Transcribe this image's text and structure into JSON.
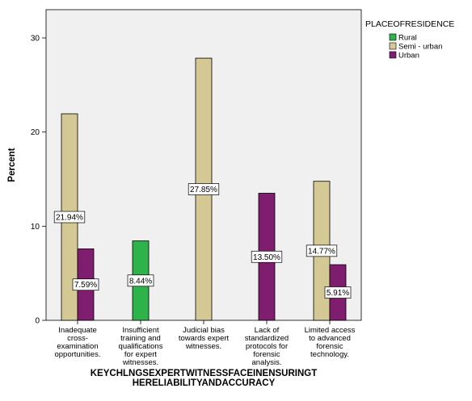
{
  "chart_data": {
    "type": "bar",
    "xlabel": "KEYCHLNGSEXPERTWITNESSFACEINENSURINGTHERELIABILITYANDACCURACY",
    "ylabel": "Percent",
    "ylim": [
      0,
      33
    ],
    "yticks": [
      0,
      10,
      20,
      30
    ],
    "grid": false,
    "legend": {
      "title": "PLACEOFRESIDENCE",
      "position": "top-right"
    },
    "categories": [
      "Inadequate cross-examination opportunities.",
      "Insufficient training and qualifications for expert witnesses.",
      "Judicial bias towards expert witnesses.",
      "Lack of standardized protocols for forensic analysis.",
      "Limited access to advanced forensic technology."
    ],
    "category_lines": [
      [
        "Inadequate",
        "cross-",
        "examination",
        "opportunities."
      ],
      [
        "Insufficient",
        "training and",
        "qualifications",
        "for expert",
        "witnesses."
      ],
      [
        "Judicial bias",
        "towards expert",
        "witnesses."
      ],
      [
        "Lack of",
        "standardized",
        "protocols for",
        "forensic",
        "analysis."
      ],
      [
        "Limited access",
        "to advanced",
        "forensic",
        "technology."
      ]
    ],
    "series": [
      {
        "name": "Rural",
        "color": "#2db34a",
        "values": [
          null,
          8.44,
          null,
          null,
          null
        ],
        "labels": [
          null,
          "8.44%",
          null,
          null,
          null
        ]
      },
      {
        "name": "Semi - urban",
        "color": "#d4c994",
        "values": [
          21.94,
          null,
          27.85,
          null,
          14.77
        ],
        "labels": [
          "21.94%",
          null,
          "27.85%",
          null,
          "14.77%"
        ]
      },
      {
        "name": "Urban",
        "color": "#7f1d6f",
        "values": [
          7.59,
          null,
          null,
          13.5,
          5.91
        ],
        "labels": [
          "7.59%",
          null,
          null,
          "13.50%",
          "5.91%"
        ]
      }
    ]
  }
}
